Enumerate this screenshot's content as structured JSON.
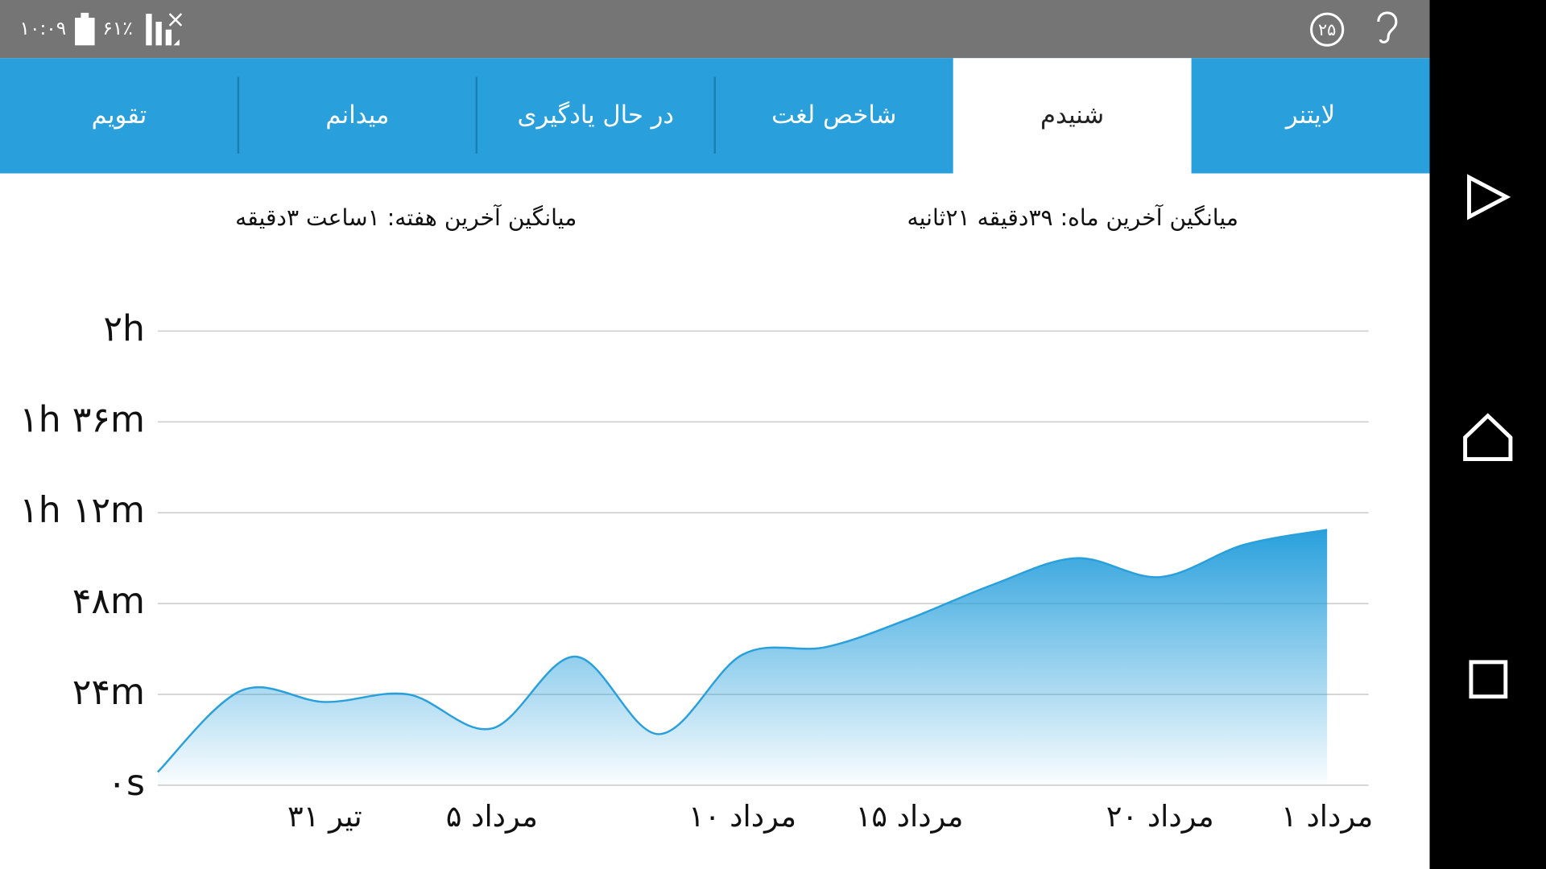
{
  "status_bar": {
    "time": "۱۰:۰۹",
    "battery": "۶۱٪",
    "badge": "۲۵"
  },
  "tabs": [
    "لایتنر",
    "شنیدم",
    "شاخص لغت",
    "در حال یادگیری",
    "میدانم",
    "تقویم"
  ],
  "selected_tab": 1,
  "summary": {
    "month": "میانگین آخرین ماه: ۳۹دقیقه  ۲۱ثانیه",
    "week": "میانگین آخرین هفته: ۱ساعت  ۳دقیقه"
  },
  "chart_data": {
    "type": "area",
    "color": "#29a0dc",
    "categories": [
      null,
      null,
      "۳۱ تیر",
      null,
      "۵ مرداد",
      null,
      null,
      "۱۰ مرداد",
      null,
      "۱۵ مرداد",
      null,
      null,
      "۲۰ مرداد",
      null,
      "۱ مرداد"
    ],
    "values": [
      3.5,
      25,
      22,
      24,
      15,
      34,
      13.5,
      34.5,
      36.5,
      44,
      53,
      60,
      55,
      63.5,
      67.5
    ],
    "ylim": [
      0,
      120
    ],
    "yticks": [
      {
        "value": 0,
        "label": "۰s"
      },
      {
        "value": 24,
        "label": "۲۴m"
      },
      {
        "value": 48,
        "label": "۴۸m"
      },
      {
        "value": 72,
        "label": "۱h ۱۲m"
      },
      {
        "value": 96,
        "label": "۱h ۳۶m"
      },
      {
        "value": 120,
        "label": "۲h"
      }
    ],
    "grid": true
  }
}
